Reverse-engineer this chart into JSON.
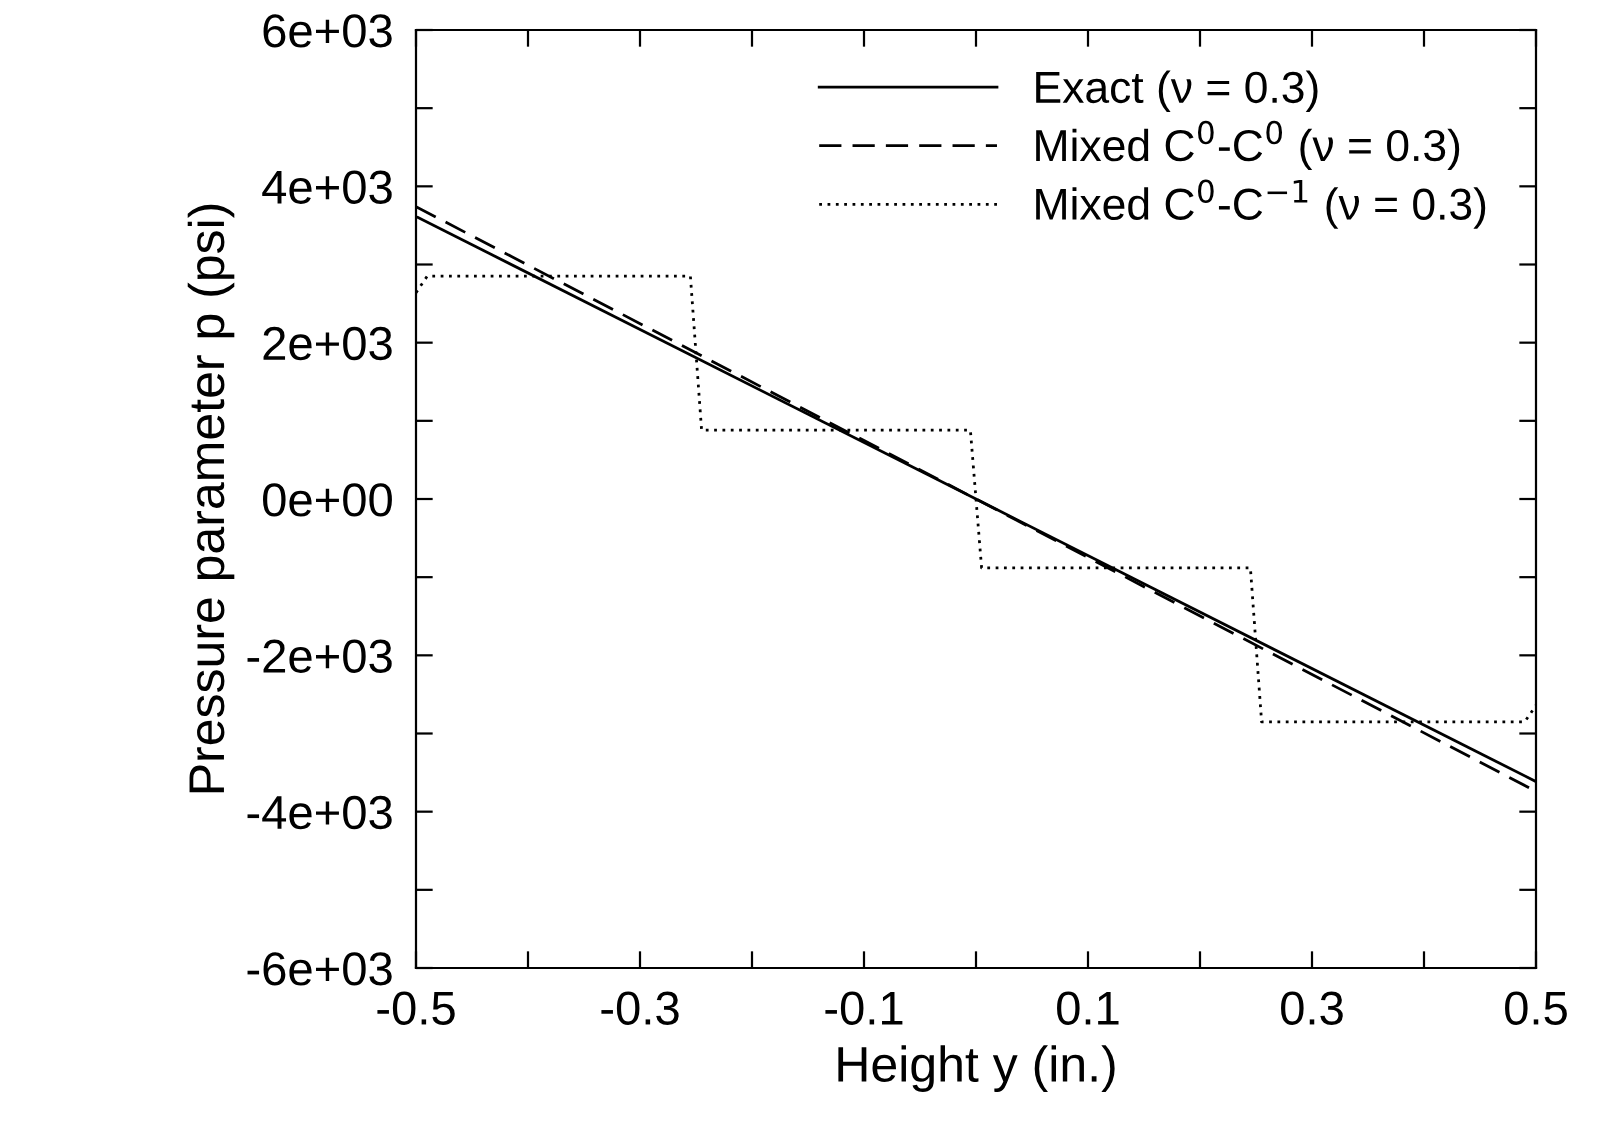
{
  "chart_data": {
    "type": "line",
    "xlabel": "Height y (in.)",
    "ylabel": "Pressure parameter p (psi)",
    "xlim": [
      -0.5,
      0.5
    ],
    "ylim": [
      -6000,
      6000
    ],
    "xticks": [
      -0.5,
      {
        "value": -0.4,
        "label": null
      },
      -0.3,
      {
        "value": -0.2,
        "label": null
      },
      -0.1,
      {
        "value": 0,
        "label": null
      },
      0.1,
      {
        "value": 0.2,
        "label": null
      },
      0.3,
      {
        "value": 0.4,
        "label": null
      },
      0.5
    ],
    "yticks": [
      {
        "value": -6000,
        "label": "-6e+03"
      },
      {
        "value": -5000,
        "label": null
      },
      {
        "value": -4000,
        "label": "-4e+03"
      },
      {
        "value": -3000,
        "label": null
      },
      {
        "value": -2000,
        "label": "-2e+03"
      },
      {
        "value": -1000,
        "label": null
      },
      {
        "value": 0,
        "label": "0e+00"
      },
      {
        "value": 1000,
        "label": null
      },
      {
        "value": 2000,
        "label": "2e+03"
      },
      {
        "value": 3000,
        "label": null
      },
      {
        "value": 4000,
        "label": "4e+03"
      },
      {
        "value": 5000,
        "label": null
      },
      {
        "value": 6000,
        "label": "6e+03"
      }
    ],
    "grid": false,
    "legend": "top right",
    "marker": "none",
    "series": [
      {
        "name": "Exact (ν = 0.3)",
        "color": "#000000",
        "line_style": "solid",
        "x": [
          -0.5,
          0.5
        ],
        "values": [
          3615,
          -3615
        ]
      },
      {
        "name": "Mixed C$^{0}$-C$^{0}$ (ν = 0.3)",
        "color": "#000000",
        "line_style": "dashed",
        "x": [
          -0.5,
          0.5
        ],
        "values": [
          3740,
          -3740
        ]
      },
      {
        "name": "Mixed C$^{0}$-C$^{−1}$ (ν = 0.3)",
        "color": "#000000",
        "line_style": "dotted",
        "x": [
          -0.5,
          -0.49,
          -0.255,
          -0.245,
          -0.005,
          0.005,
          0.245,
          0.255,
          0.49,
          0.5
        ],
        "values": [
          2640,
          2850,
          2850,
          880,
          880,
          -880,
          -880,
          -2850,
          -2850,
          -2640
        ]
      }
    ]
  }
}
